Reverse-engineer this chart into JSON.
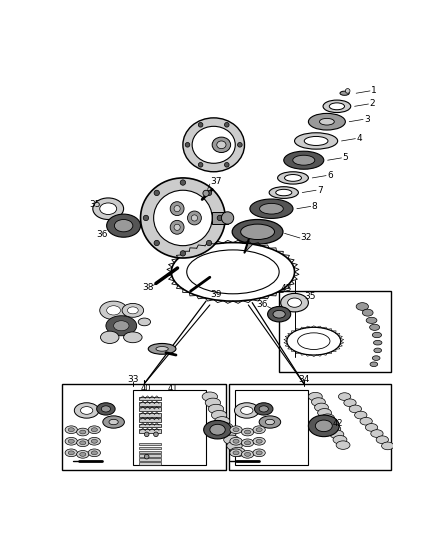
{
  "bg_color": "#ffffff",
  "line_color": "#000000",
  "gray_light": "#cccccc",
  "gray_mid": "#999999",
  "gray_dark": "#555555",
  "gray_fill": "#aaaaaa",
  "black_fill": "#222222"
}
